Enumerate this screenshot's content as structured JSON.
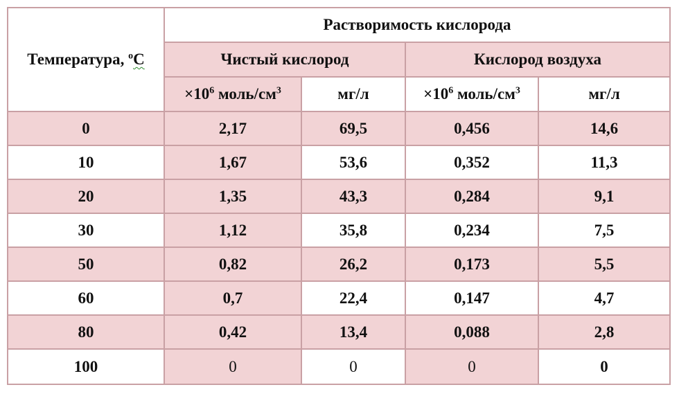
{
  "table": {
    "title": "Растворимость кислорода",
    "temperature_header_prefix": "Температура, ",
    "temperature_header_degree": "o",
    "temperature_header_unit": "C",
    "group_headers": [
      "Чистый кислород",
      "Кислород воздуха"
    ],
    "unit_molar_prefix": "×10",
    "unit_molar_exp": "6",
    "unit_molar_mid": " моль/см",
    "unit_molar_exp2": "3",
    "unit_mass": "мг/л",
    "rows": [
      {
        "t": "0",
        "pure_mol": "2,17",
        "pure_mg": "69,5",
        "air_mol": "0,456",
        "air_mg": "14,6"
      },
      {
        "t": "10",
        "pure_mol": "1,67",
        "pure_mg": "53,6",
        "air_mol": "0,352",
        "air_mg": "11,3"
      },
      {
        "t": "20",
        "pure_mol": "1,35",
        "pure_mg": "43,3",
        "air_mol": "0,284",
        "air_mg": "9,1"
      },
      {
        "t": "30",
        "pure_mol": "1,12",
        "pure_mg": "35,8",
        "air_mol": "0,234",
        "air_mg": "7,5"
      },
      {
        "t": "50",
        "pure_mol": "0,82",
        "pure_mg": "26,2",
        "air_mol": "0,173",
        "air_mg": "5,5"
      },
      {
        "t": "60",
        "pure_mol": "0,7",
        "pure_mg": "22,4",
        "air_mol": "0,147",
        "air_mg": "4,7"
      },
      {
        "t": "80",
        "pure_mol": "0,42",
        "pure_mg": "13,4",
        "air_mol": "0,088",
        "air_mg": "2,8"
      },
      {
        "t": "100",
        "pure_mol": "0",
        "pure_mg": "0",
        "air_mol": "0",
        "air_mg": "0"
      }
    ]
  },
  "colors": {
    "pink_fill": "#f2d3d5",
    "border": "#c9a0a4",
    "text": "#111111"
  }
}
